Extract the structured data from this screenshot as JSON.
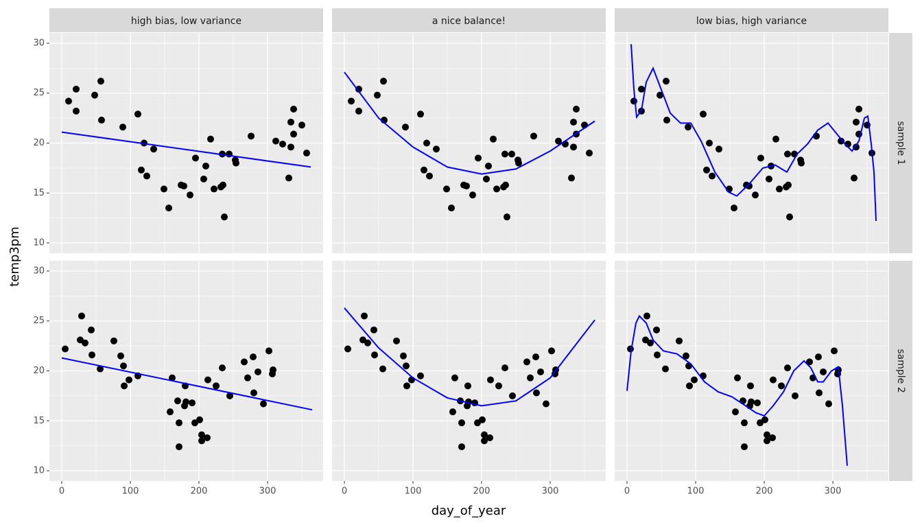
{
  "chart_data": {
    "type": "scatter",
    "xlabel": "day_of_year",
    "ylabel": "temp3pm",
    "columns": [
      "high bias, low variance",
      "a nice balance!",
      "low bias, high variance"
    ],
    "xlim": [
      -18,
      381
    ],
    "ylim": [
      8.97,
      31.03
    ],
    "xticks": [
      0,
      100,
      200,
      300
    ],
    "yticks": [
      10,
      15,
      20,
      25,
      30
    ],
    "xminor": [
      50,
      150,
      250,
      350
    ],
    "yminor": [
      12.5,
      17.5,
      22.5,
      27.5
    ],
    "point_color": "#000000",
    "line_color": "#0000ff",
    "grid": true,
    "rows": [
      {
        "label": "sample 1",
        "x": [
          10,
          21,
          21,
          48,
          57,
          58,
          89,
          111,
          116,
          120,
          124,
          134,
          149,
          156,
          174,
          178,
          187,
          195,
          207,
          210,
          217,
          222,
          232,
          234,
          235,
          237,
          244,
          253,
          254,
          276,
          312,
          322,
          331,
          334,
          338,
          334,
          338,
          350,
          357
        ],
        "y": [
          24.2,
          25.4,
          23.2,
          24.8,
          26.2,
          22.3,
          21.6,
          22.9,
          17.3,
          20.0,
          16.7,
          19.4,
          15.4,
          13.5,
          15.8,
          15.7,
          14.8,
          18.5,
          16.4,
          17.7,
          20.4,
          15.4,
          15.6,
          18.9,
          15.8,
          12.6,
          18.9,
          18.3,
          18.0,
          20.7,
          20.2,
          19.9,
          16.5,
          22.1,
          23.4,
          19.6,
          20.9,
          21.8,
          19.0
        ],
        "fits": [
          {
            "x": [
              0,
              363
            ],
            "y": [
              21.1,
              17.6
            ]
          },
          {
            "x": [
              0,
              50,
              100,
              150,
              200,
              250,
              300,
              365
            ],
            "y": [
              27.1,
              22.5,
              19.6,
              17.6,
              16.9,
              17.4,
              19.2,
              22.2
            ]
          },
          {
            "x": [
              6,
              10,
              14,
              21,
              28,
              38,
              48,
              63,
              78,
              93,
              108,
              128,
              148,
              160,
              178,
              198,
              216,
              233,
              248,
              263,
              278,
              293,
              306,
              318,
              328,
              338,
              346,
              351,
              356,
              360,
              363
            ],
            "y": [
              29.9,
              25.4,
              22.6,
              23.3,
              26.1,
              27.5,
              25.7,
              23.0,
              22.0,
              22.0,
              20.2,
              17.1,
              15.1,
              14.7,
              15.9,
              17.5,
              17.8,
              17.1,
              18.9,
              19.9,
              21.3,
              22.0,
              20.9,
              19.9,
              19.2,
              20.2,
              22.5,
              22.7,
              19.9,
              17.1,
              12.2
            ]
          }
        ]
      },
      {
        "label": "sample 2",
        "x": [
          5,
          29,
          27,
          34,
          43,
          44,
          56,
          76,
          86,
          90,
          91,
          98,
          111,
          158,
          161,
          169,
          171,
          171,
          179,
          180,
          181,
          190,
          194,
          201,
          204,
          204,
          212,
          213,
          225,
          234,
          245,
          266,
          271,
          279,
          280,
          286,
          294,
          302,
          308,
          307
        ],
        "y": [
          22.2,
          25.5,
          23.1,
          22.8,
          24.1,
          21.6,
          20.2,
          23.0,
          21.5,
          20.5,
          18.5,
          19.1,
          19.5,
          15.9,
          19.3,
          17.0,
          14.8,
          12.4,
          16.5,
          18.5,
          16.9,
          16.8,
          14.8,
          15.1,
          13.6,
          13.0,
          13.3,
          19.1,
          18.5,
          20.3,
          17.5,
          20.9,
          19.3,
          21.4,
          17.8,
          19.9,
          16.7,
          22.0,
          20.1,
          19.7
        ],
        "fits": [
          {
            "x": [
              0,
              365
            ],
            "y": [
              21.3,
              16.1
            ]
          },
          {
            "x": [
              0,
              50,
              100,
              150,
              200,
              250,
              300,
              365
            ],
            "y": [
              26.3,
              22.3,
              19.3,
              17.3,
              16.5,
              17.0,
              19.3,
              25.1
            ]
          },
          {
            "x": [
              0,
              6,
              13,
              18,
              28,
              38,
              53,
              73,
              93,
              113,
              133,
              153,
              173,
              188,
              200,
              213,
              228,
              243,
              258,
              268,
              278,
              286,
              298,
              308,
              314,
              321
            ],
            "y": [
              18.0,
              22.0,
              24.8,
              25.5,
              24.8,
              23.1,
              22.0,
              21.7,
              20.7,
              18.9,
              17.9,
              17.4,
              16.5,
              15.8,
              15.5,
              16.5,
              17.9,
              20.0,
              21.0,
              20.3,
              18.9,
              18.9,
              20.0,
              20.4,
              16.5,
              10.5
            ]
          }
        ]
      }
    ]
  }
}
